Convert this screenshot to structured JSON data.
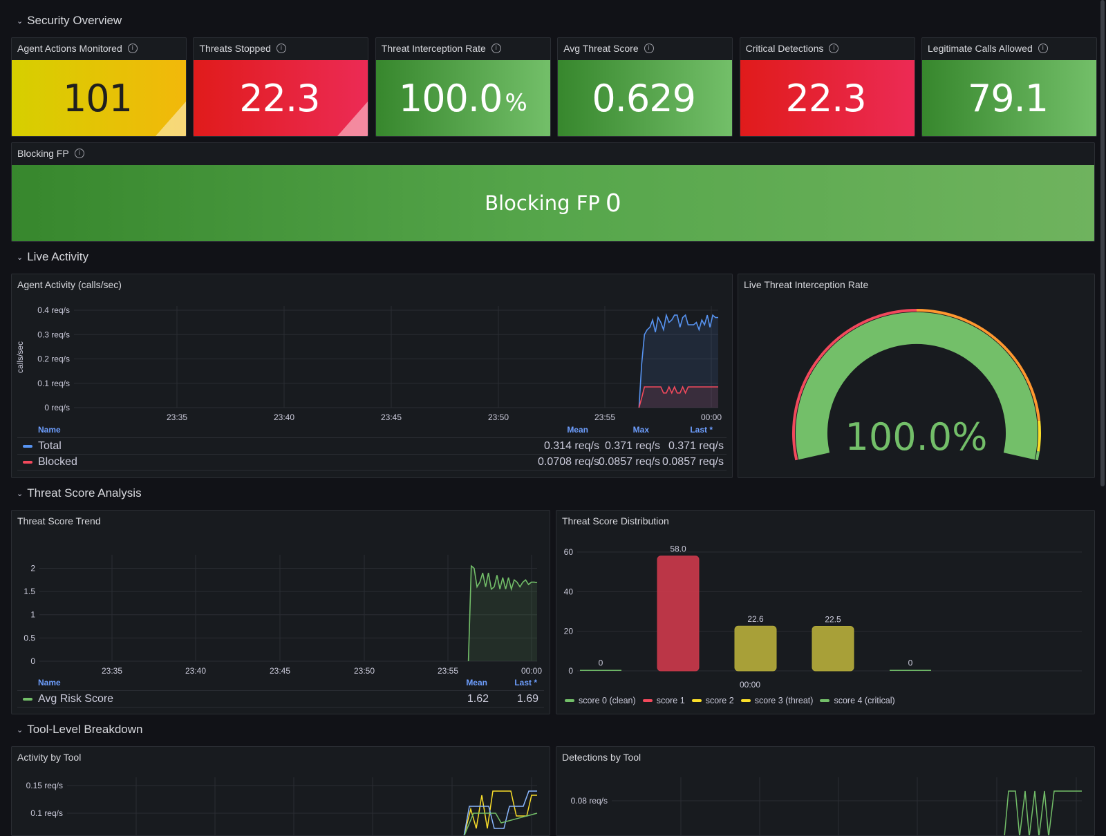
{
  "rows": {
    "security": "Security Overview",
    "live": "Live Activity",
    "threat": "Threat Score Analysis",
    "tool": "Tool-Level Breakdown"
  },
  "stats": [
    {
      "title": "Agent Actions Monitored",
      "value": "101",
      "unit": "",
      "text_color": "#1f1f1f"
    },
    {
      "title": "Threats Stopped",
      "value": "22.3",
      "unit": ""
    },
    {
      "title": "Threat Interception Rate",
      "value": "100.0",
      "unit": "%"
    },
    {
      "title": "Avg Threat Score",
      "value": "0.629",
      "unit": ""
    },
    {
      "title": "Critical Detections",
      "value": "22.3",
      "unit": ""
    },
    {
      "title": "Legitimate Calls Allowed",
      "value": "79.1",
      "unit": ""
    }
  ],
  "blocking": {
    "title": "Blocking FP",
    "label": "Blocking FP",
    "value": "0"
  },
  "agent_activity": {
    "title": "Agent Activity (calls/sec)",
    "ylabel": "calls/sec",
    "yticks": [
      "0.4 req/s",
      "0.3 req/s",
      "0.2 req/s",
      "0.1 req/s",
      "0 req/s"
    ],
    "xticks": [
      "23:35",
      "23:40",
      "23:45",
      "23:50",
      "23:55",
      "00:00"
    ],
    "legend_headers": {
      "name": "Name",
      "mean": "Mean",
      "max": "Max",
      "last": "Last *"
    },
    "series": [
      {
        "name": "Total",
        "color": "#5794f2",
        "mean": "0.314 req/s",
        "max": "0.371 req/s",
        "last": "0.371 req/s",
        "values": [
          0,
          0.18,
          0.3,
          0.32,
          0.33,
          0.36,
          0.31,
          0.37,
          0.35,
          0.32,
          0.38,
          0.35,
          0.36,
          0.38,
          0.38,
          0.33,
          0.37,
          0.38,
          0.34,
          0.34,
          0.34,
          0.35,
          0.32,
          0.36,
          0.34,
          0.38,
          0.33,
          0.38,
          0.37,
          0.37
        ]
      },
      {
        "name": "Blocked",
        "color": "#f2495c",
        "mean": "0.0708 req/s",
        "max": "0.0857 req/s",
        "last": "0.0857 req/s",
        "values": [
          0,
          0.04,
          0.085,
          0.085,
          0.085,
          0.085,
          0.085,
          0.085,
          0.085,
          0.06,
          0.06,
          0.085,
          0.06,
          0.085,
          0.06,
          0.06,
          0.085,
          0.06,
          0.085,
          0.085,
          0.085,
          0.085,
          0.085,
          0.085,
          0.085,
          0.085,
          0.085,
          0.085,
          0.085,
          0.085
        ]
      }
    ]
  },
  "live_gauge": {
    "title": "Live Threat Interception Rate",
    "value": "100.0",
    "unit": "%",
    "fraction": 1.0
  },
  "threat_trend": {
    "title": "Threat Score Trend",
    "yticks": [
      "2",
      "1.5",
      "1",
      "0.5",
      "0"
    ],
    "xticks": [
      "23:35",
      "23:40",
      "23:45",
      "23:50",
      "23:55",
      "00:00"
    ],
    "legend_headers": {
      "name": "Name",
      "mean": "Mean",
      "last": "Last *"
    },
    "series": [
      {
        "name": "Avg Risk Score",
        "color": "#73bf69",
        "mean": "1.62",
        "last": "1.69",
        "values": [
          0,
          2.05,
          2.0,
          1.6,
          1.7,
          1.9,
          1.6,
          1.9,
          1.55,
          1.6,
          1.85,
          1.55,
          1.8,
          1.55,
          1.8,
          1.55,
          1.75,
          1.7,
          1.6,
          1.7,
          1.75,
          1.65,
          1.7,
          1.7,
          1.69
        ]
      }
    ]
  },
  "distribution": {
    "title": "Threat Score Distribution",
    "yticks": [
      "60",
      "40",
      "20",
      "0"
    ],
    "xtick": "00:00",
    "bars": [
      {
        "label": "0",
        "value": 0,
        "color": "#73bf69"
      },
      {
        "label": "58.0",
        "value": 58.0,
        "color": "#c4384a"
      },
      {
        "label": "22.6",
        "value": 22.6,
        "color": "#b0a83a"
      },
      {
        "label": "22.5",
        "value": 22.5,
        "color": "#b0a83a"
      },
      {
        "label": "0",
        "value": 0,
        "color": "#73bf69"
      }
    ],
    "legend": [
      {
        "name": "score 0 (clean)",
        "color": "#73bf69"
      },
      {
        "name": "score 1",
        "color": "#f2495c"
      },
      {
        "name": "score 2",
        "color": "#fade2a"
      },
      {
        "name": "score 3 (threat)",
        "color": "#fade2a"
      },
      {
        "name": "score 4 (critical)",
        "color": "#73bf69"
      }
    ]
  },
  "activity_by_tool": {
    "title": "Activity by Tool",
    "yticks": [
      "0.15 req/s",
      "0.1 req/s"
    ]
  },
  "detections_by_tool": {
    "title": "Detections by Tool",
    "yticks": [
      "0.08 req/s"
    ]
  },
  "chart_data": [
    {
      "type": "line",
      "title": "Agent Activity (calls/sec)",
      "ylabel": "calls/sec",
      "ylim": [
        0,
        0.4
      ],
      "x": [
        "23:35",
        "23:40",
        "23:45",
        "23:50",
        "23:55",
        "00:00"
      ],
      "series": [
        {
          "name": "Total",
          "mean": 0.314,
          "max": 0.371,
          "last": 0.371
        },
        {
          "name": "Blocked",
          "mean": 0.0708,
          "max": 0.0857,
          "last": 0.0857
        }
      ]
    },
    {
      "type": "line",
      "title": "Threat Score Trend",
      "ylim": [
        0,
        2
      ],
      "series": [
        {
          "name": "Avg Risk Score",
          "mean": 1.62,
          "last": 1.69
        }
      ]
    },
    {
      "type": "bar",
      "title": "Threat Score Distribution",
      "categories": [
        "score 0 (clean)",
        "score 1",
        "score 2",
        "score 3 (threat)",
        "score 4 (critical)"
      ],
      "values": [
        0,
        58.0,
        22.6,
        22.5,
        0
      ],
      "ylim": [
        0,
        60
      ]
    }
  ]
}
